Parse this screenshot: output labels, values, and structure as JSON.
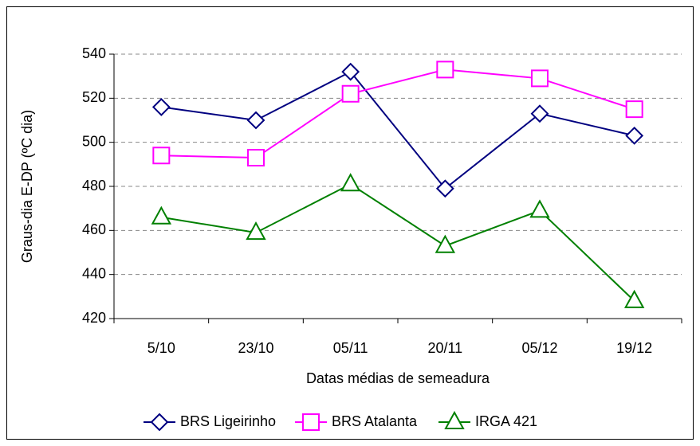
{
  "chart_data": {
    "type": "line",
    "x_label": "Datas médias de semeadura",
    "y_label": "Graus-dia E-DP (ºC dia)",
    "categories": [
      "5/10",
      "23/10",
      "05/11",
      "20/11",
      "05/12",
      "19/12"
    ],
    "series": [
      {
        "name": "BRS Ligeirinho",
        "color": "#000080",
        "marker": "diamond",
        "values": [
          516,
          510,
          532,
          479,
          513,
          503
        ]
      },
      {
        "name": "BRS Atalanta",
        "color": "#ff00ff",
        "marker": "square",
        "values": [
          494,
          493,
          522,
          533,
          529,
          515
        ]
      },
      {
        "name": "IRGA 421",
        "color": "#008000",
        "marker": "triangle",
        "values": [
          466,
          459,
          481,
          453,
          469,
          428
        ]
      }
    ],
    "ylim": [
      420,
      540
    ],
    "yticks": [
      420,
      440,
      460,
      480,
      500,
      520,
      540
    ],
    "grid": true,
    "legend": "bottom"
  }
}
